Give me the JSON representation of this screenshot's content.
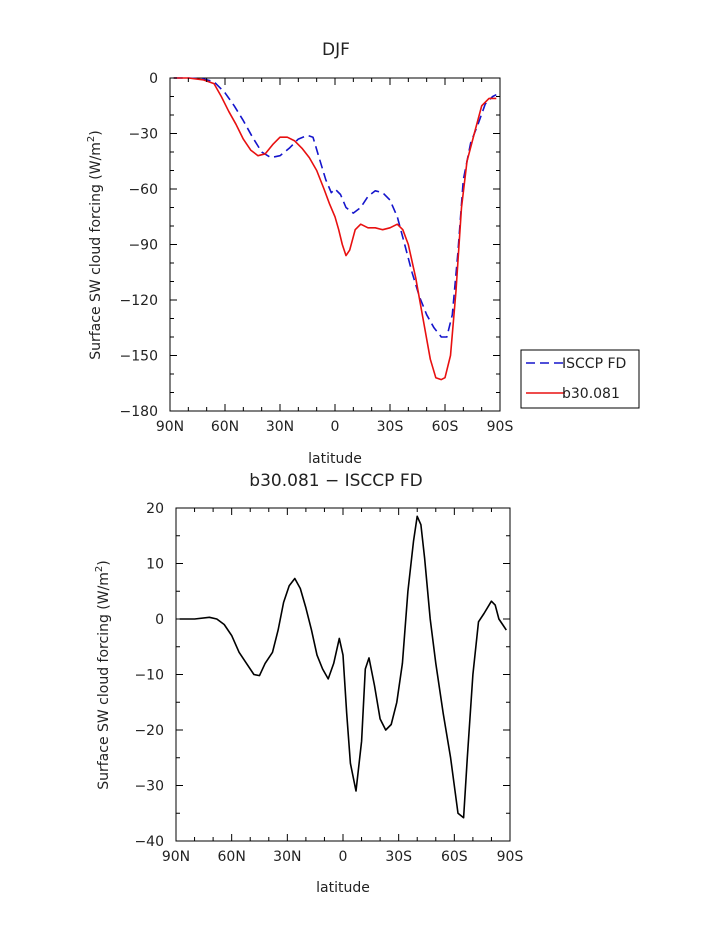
{
  "chart_data": [
    {
      "type": "line",
      "title": "DJF",
      "xlabel": "latitude",
      "ylabel_main": "Surface SW cloud forcing (W/m",
      "ylabel_sup": "2",
      "ylabel_end": ")",
      "xlim": [
        90,
        -90
      ],
      "ylim": [
        -180,
        0
      ],
      "xticks": [
        90,
        60,
        30,
        0,
        -30,
        -60,
        -90
      ],
      "xtick_labels": [
        "90N",
        "60N",
        "30N",
        "0",
        "30S",
        "60S",
        "90S"
      ],
      "yticks": [
        0,
        -30,
        -60,
        -90,
        -120,
        -150,
        -180
      ],
      "ytick_labels": [
        "0",
        "−30",
        "−60",
        "−90",
        "−120",
        "−150",
        "−180"
      ],
      "grid": false,
      "legend_position": "right",
      "series": [
        {
          "name": "ISCCP FD",
          "color": "#1515cc",
          "dash": "dashed",
          "x": [
            88,
            80,
            72,
            66,
            60,
            55,
            50,
            45,
            40,
            35,
            30,
            25,
            20,
            15,
            12,
            9,
            5,
            2,
            0,
            -3,
            -6,
            -10,
            -14,
            -18,
            -22,
            -26,
            -30,
            -34,
            -38,
            -42,
            -46,
            -50,
            -54,
            -58,
            -61,
            -64,
            -67,
            -70,
            -74,
            -78,
            -82,
            -86,
            -88
          ],
          "y": [
            0,
            0,
            -0.5,
            -2,
            -8,
            -15,
            -23,
            -32,
            -40,
            -43,
            -42,
            -38,
            -33,
            -31,
            -32,
            -42,
            -55,
            -62,
            -60,
            -63,
            -70,
            -73,
            -70,
            -64,
            -61,
            -62,
            -66,
            -75,
            -90,
            -105,
            -118,
            -128,
            -135,
            -140,
            -140,
            -128,
            -95,
            -55,
            -35,
            -25,
            -14,
            -10,
            -9
          ]
        },
        {
          "name": "b30.081",
          "color": "#e81010",
          "dash": "solid",
          "x": [
            88,
            80,
            72,
            66,
            62,
            58,
            54,
            50,
            46,
            42,
            38,
            34,
            30,
            26,
            22,
            18,
            14,
            10,
            6,
            3,
            0,
            -2,
            -4,
            -6,
            -8,
            -11,
            -14,
            -18,
            -22,
            -26,
            -30,
            -34,
            -37,
            -40,
            -44,
            -48,
            -52,
            -55,
            -58,
            -60,
            -63,
            -66,
            -69,
            -72,
            -76,
            -80,
            -84,
            -88
          ],
          "y": [
            0,
            0,
            -1,
            -3,
            -10,
            -18,
            -25,
            -33,
            -39,
            -42,
            -41,
            -36,
            -32,
            -32,
            -34,
            -38,
            -43,
            -50,
            -60,
            -68,
            -75,
            -82,
            -90,
            -96,
            -93,
            -82,
            -79,
            -81,
            -81,
            -82,
            -81,
            -79,
            -82,
            -90,
            -108,
            -130,
            -152,
            -162,
            -163,
            -162,
            -150,
            -115,
            -70,
            -45,
            -30,
            -15,
            -11,
            -11
          ]
        }
      ]
    },
    {
      "type": "line",
      "title": "b30.081 − ISCCP FD",
      "xlabel": "latitude",
      "ylabel_main": "Surface SW cloud forcing (W/m",
      "ylabel_sup": "2",
      "ylabel_end": ")",
      "xlim": [
        90,
        -90
      ],
      "ylim": [
        -40,
        20
      ],
      "xticks": [
        90,
        60,
        30,
        0,
        -30,
        -60,
        -90
      ],
      "xtick_labels": [
        "90N",
        "60N",
        "30N",
        "0",
        "30S",
        "60S",
        "90S"
      ],
      "yticks": [
        20,
        10,
        0,
        -10,
        -20,
        -30,
        -40
      ],
      "ytick_labels": [
        "20",
        "10",
        "0",
        "−10",
        "−20",
        "−30",
        "−40"
      ],
      "grid": false,
      "series": [
        {
          "name": "",
          "color": "#000000",
          "dash": "solid",
          "x": [
            88,
            80,
            72,
            68,
            64,
            60,
            56,
            52,
            48,
            45,
            42,
            38,
            35,
            32,
            29,
            26,
            23,
            20,
            17,
            14,
            11,
            8,
            5,
            2,
            0,
            -2,
            -4,
            -7,
            -10,
            -12,
            -14,
            -17,
            -20,
            -23,
            -26,
            -29,
            -32,
            -35,
            -38,
            -40,
            -42,
            -44,
            -47,
            -50,
            -54,
            -58,
            -62,
            -65,
            -67,
            -70,
            -73,
            -76,
            -80,
            -82,
            -84,
            -86,
            -88
          ],
          "y": [
            0,
            0,
            0.3,
            0,
            -1,
            -3,
            -6,
            -8,
            -10,
            -10.2,
            -8,
            -6,
            -2,
            3,
            6,
            7.3,
            5.5,
            2,
            -2,
            -6.5,
            -9,
            -10.8,
            -8,
            -3.5,
            -6.5,
            -17,
            -26,
            -31,
            -22,
            -9,
            -7,
            -12,
            -18,
            -20,
            -19,
            -15,
            -8,
            5,
            14,
            18.5,
            17,
            11,
            0,
            -8,
            -17,
            -25,
            -35,
            -35.8,
            -25,
            -10,
            -0.5,
            1,
            3.2,
            2.5,
            0,
            -1,
            -2
          ]
        }
      ]
    }
  ]
}
